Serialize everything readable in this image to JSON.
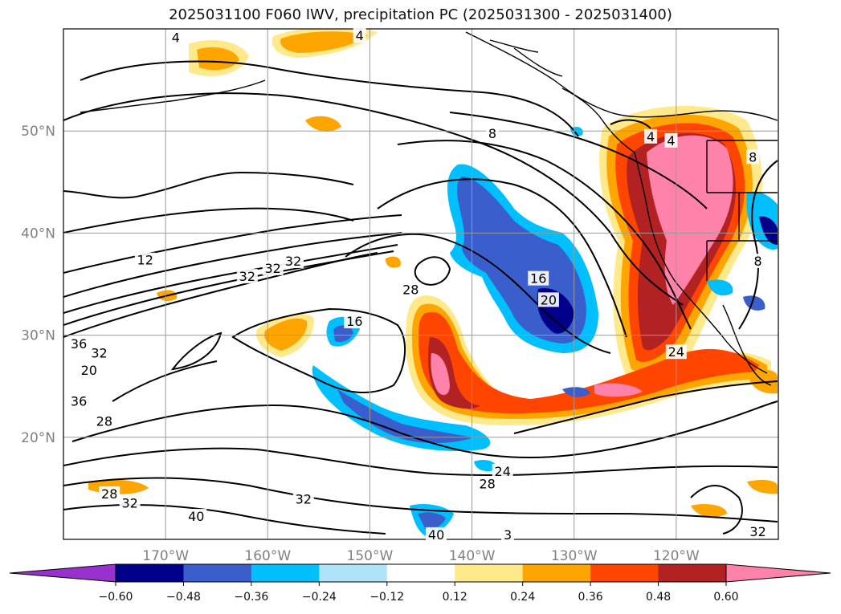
{
  "chart_data": {
    "type": "map",
    "title": "2025031100 F060 IWV, precipitation PC (2025031300 - 2025031400)",
    "lat_labels": [
      "50°N",
      "40°N",
      "30°N",
      "20°N"
    ],
    "lon_labels": [
      "170°W",
      "160°W",
      "150°W",
      "140°W",
      "130°W",
      "120°W"
    ],
    "lat_values": [
      50,
      40,
      30,
      20
    ],
    "lon_values": [
      -170,
      -160,
      -150,
      -140,
      -130,
      -120
    ],
    "lon_range": [
      -180,
      -110
    ],
    "lat_range": [
      10,
      60
    ],
    "grid": true,
    "colorbar": {
      "orientation": "horizontal",
      "placement": "bottom",
      "extend": "both",
      "tick_labels": [
        "−0.60",
        "−0.48",
        "−0.36",
        "−0.24",
        "−0.12",
        "0.12",
        "0.24",
        "0.36",
        "0.48",
        "0.60"
      ],
      "colors": [
        "#9932cc",
        "#00008b",
        "#3a5fcd",
        "#00bfff",
        "#aee3fa",
        "#ffffff",
        "#ffe98a",
        "#ffa500",
        "#ff4500",
        "#b22222",
        "#ff82ab"
      ]
    },
    "contour_labels": [
      {
        "text": "4",
        "lon": -169,
        "lat": 59.1
      },
      {
        "text": "4",
        "lon": -151,
        "lat": 59.3
      },
      {
        "text": "8",
        "lon": -138,
        "lat": 49.7
      },
      {
        "text": "4",
        "lon": -122.5,
        "lat": 49.4
      },
      {
        "text": "4",
        "lon": -120.5,
        "lat": 49.0
      },
      {
        "text": "12",
        "lon": -172,
        "lat": 37.3
      },
      {
        "text": "32",
        "lon": -162,
        "lat": 35.7
      },
      {
        "text": "32",
        "lon": -159.5,
        "lat": 36.5
      },
      {
        "text": "32",
        "lon": -157.5,
        "lat": 37.2
      },
      {
        "text": "28",
        "lon": -146,
        "lat": 34.4
      },
      {
        "text": "16",
        "lon": -151.5,
        "lat": 31.3
      },
      {
        "text": "16",
        "lon": -133.5,
        "lat": 35.5
      },
      {
        "text": "20",
        "lon": -132.5,
        "lat": 33.4
      },
      {
        "text": "20",
        "lon": -177.5,
        "lat": 26.5
      },
      {
        "text": "36",
        "lon": -178.5,
        "lat": 29.1
      },
      {
        "text": "32",
        "lon": -176.5,
        "lat": 28.2
      },
      {
        "text": "36",
        "lon": -178.5,
        "lat": 23.5
      },
      {
        "text": "28",
        "lon": -176,
        "lat": 21.5
      },
      {
        "text": "24",
        "lon": -120,
        "lat": 28.3
      },
      {
        "text": "24",
        "lon": -137,
        "lat": 16.6
      },
      {
        "text": "28",
        "lon": -138.5,
        "lat": 15.4
      },
      {
        "text": "32",
        "lon": -156.5,
        "lat": 13.9
      },
      {
        "text": "28",
        "lon": -175.5,
        "lat": 14.4
      },
      {
        "text": "32",
        "lon": -173.5,
        "lat": 13.5
      },
      {
        "text": "40",
        "lon": -167,
        "lat": 12.2
      },
      {
        "text": "40",
        "lon": -143.5,
        "lat": 10.4
      },
      {
        "text": "3",
        "lon": -136.5,
        "lat": 10.4
      },
      {
        "text": "32",
        "lon": -112,
        "lat": 10.7
      },
      {
        "text": "8",
        "lon": -112,
        "lat": 37.2
      },
      {
        "text": "8",
        "lon": -112.5,
        "lat": 47.4
      }
    ]
  }
}
